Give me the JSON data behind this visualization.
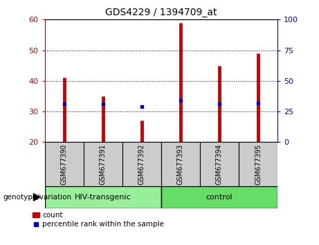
{
  "title": "GDS4229 / 1394709_at",
  "samples": [
    "GSM677390",
    "GSM677391",
    "GSM677392",
    "GSM677393",
    "GSM677394",
    "GSM677395"
  ],
  "counts": [
    41,
    35,
    27,
    59,
    45,
    49
  ],
  "percentiles": [
    31,
    31,
    29,
    34,
    31,
    32
  ],
  "ylim_left": [
    20,
    60
  ],
  "ylim_right": [
    0,
    100
  ],
  "yticks_left": [
    20,
    30,
    40,
    50,
    60
  ],
  "yticks_right": [
    0,
    25,
    50,
    75,
    100
  ],
  "bar_color": "#cc0000",
  "marker_color": "#0000cc",
  "baseline": 20,
  "groups": [
    {
      "label": "HIV-transgenic",
      "indices": [
        0,
        1,
        2
      ],
      "color": "#99ee99"
    },
    {
      "label": "control",
      "indices": [
        3,
        4,
        5
      ],
      "color": "#66dd66"
    }
  ],
  "group_label": "genotype/variation",
  "legend_count_label": "count",
  "legend_pct_label": "percentile rank within the sample",
  "tick_label_bg": "#cccccc",
  "plot_bg": "#ffffff",
  "title_color": "#000000",
  "left_axis_color": "#cc0000",
  "right_axis_color": "#0000cc",
  "fig_bg": "#ffffff",
  "grid_ticks": [
    30,
    40,
    50
  ]
}
